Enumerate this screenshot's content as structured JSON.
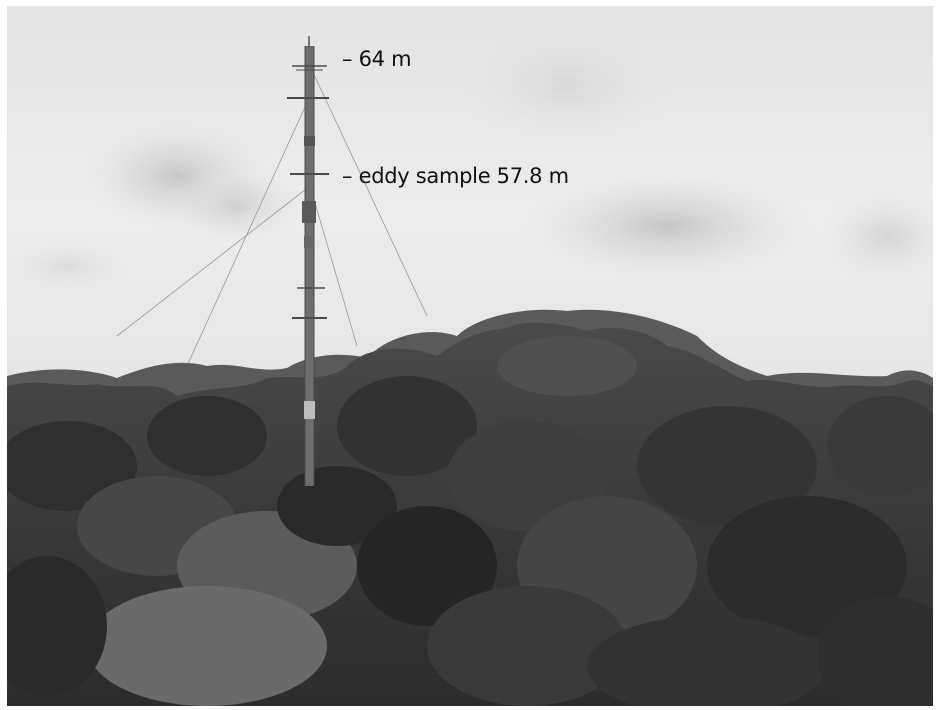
{
  "labels": {
    "top_height": "– 64 m",
    "eddy_sample": "– eddy sample 57.8 m"
  }
}
